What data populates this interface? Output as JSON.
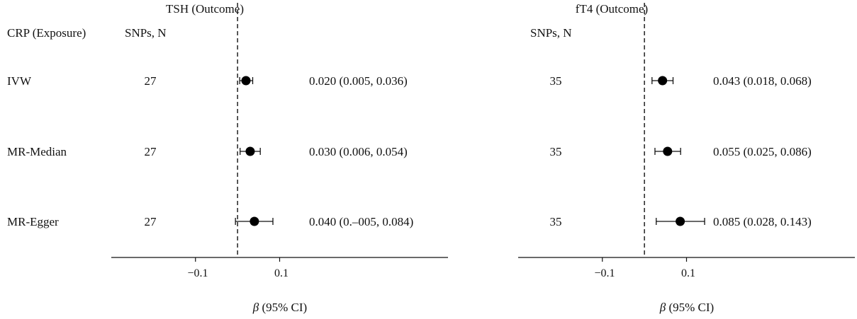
{
  "row_header": "CRP (Exposure)",
  "chart_data": [
    {
      "type": "forest",
      "title": "TSH (Outcome)",
      "snps_header": "SNPs, N",
      "xlabel_symbol": "β",
      "xlabel_rest": " (95% CI)",
      "xticks": [
        -0.1,
        0.1
      ],
      "xtick_labels": [
        "−0.1",
        "0.1"
      ],
      "null_line": 0,
      "xlim": [
        -0.3,
        0.5
      ],
      "rows": [
        {
          "method": "IVW",
          "snps": "27",
          "estimate": 0.02,
          "lower": 0.005,
          "upper": 0.036,
          "ci_text": "0.020 (0.005, 0.036)"
        },
        {
          "method": "MR-Median",
          "snps": "27",
          "estimate": 0.03,
          "lower": 0.006,
          "upper": 0.054,
          "ci_text": "0.030 (0.006, 0.054)"
        },
        {
          "method": "MR-Egger",
          "snps": "27",
          "estimate": 0.04,
          "lower": -0.005,
          "upper": 0.084,
          "ci_text": "0.040 (0.–005, 0.084)"
        }
      ]
    },
    {
      "type": "forest",
      "title": "fT4 (Outcome)",
      "snps_header": "SNPs, N",
      "xlabel_symbol": "β",
      "xlabel_rest": " (95% CI)",
      "xticks": [
        -0.1,
        0.1
      ],
      "xtick_labels": [
        "−0.1",
        "0.1"
      ],
      "null_line": 0,
      "xlim": [
        -0.3,
        0.5
      ],
      "rows": [
        {
          "method": "IVW",
          "snps": "35",
          "estimate": 0.043,
          "lower": 0.018,
          "upper": 0.068,
          "ci_text": "0.043 (0.018, 0.068)"
        },
        {
          "method": "MR-Median",
          "snps": "35",
          "estimate": 0.055,
          "lower": 0.025,
          "upper": 0.086,
          "ci_text": "0.055 (0.025, 0.086)"
        },
        {
          "method": "MR-Egger",
          "snps": "35",
          "estimate": 0.085,
          "lower": 0.028,
          "upper": 0.143,
          "ci_text": "0.085 (0.028, 0.143)"
        }
      ]
    }
  ]
}
